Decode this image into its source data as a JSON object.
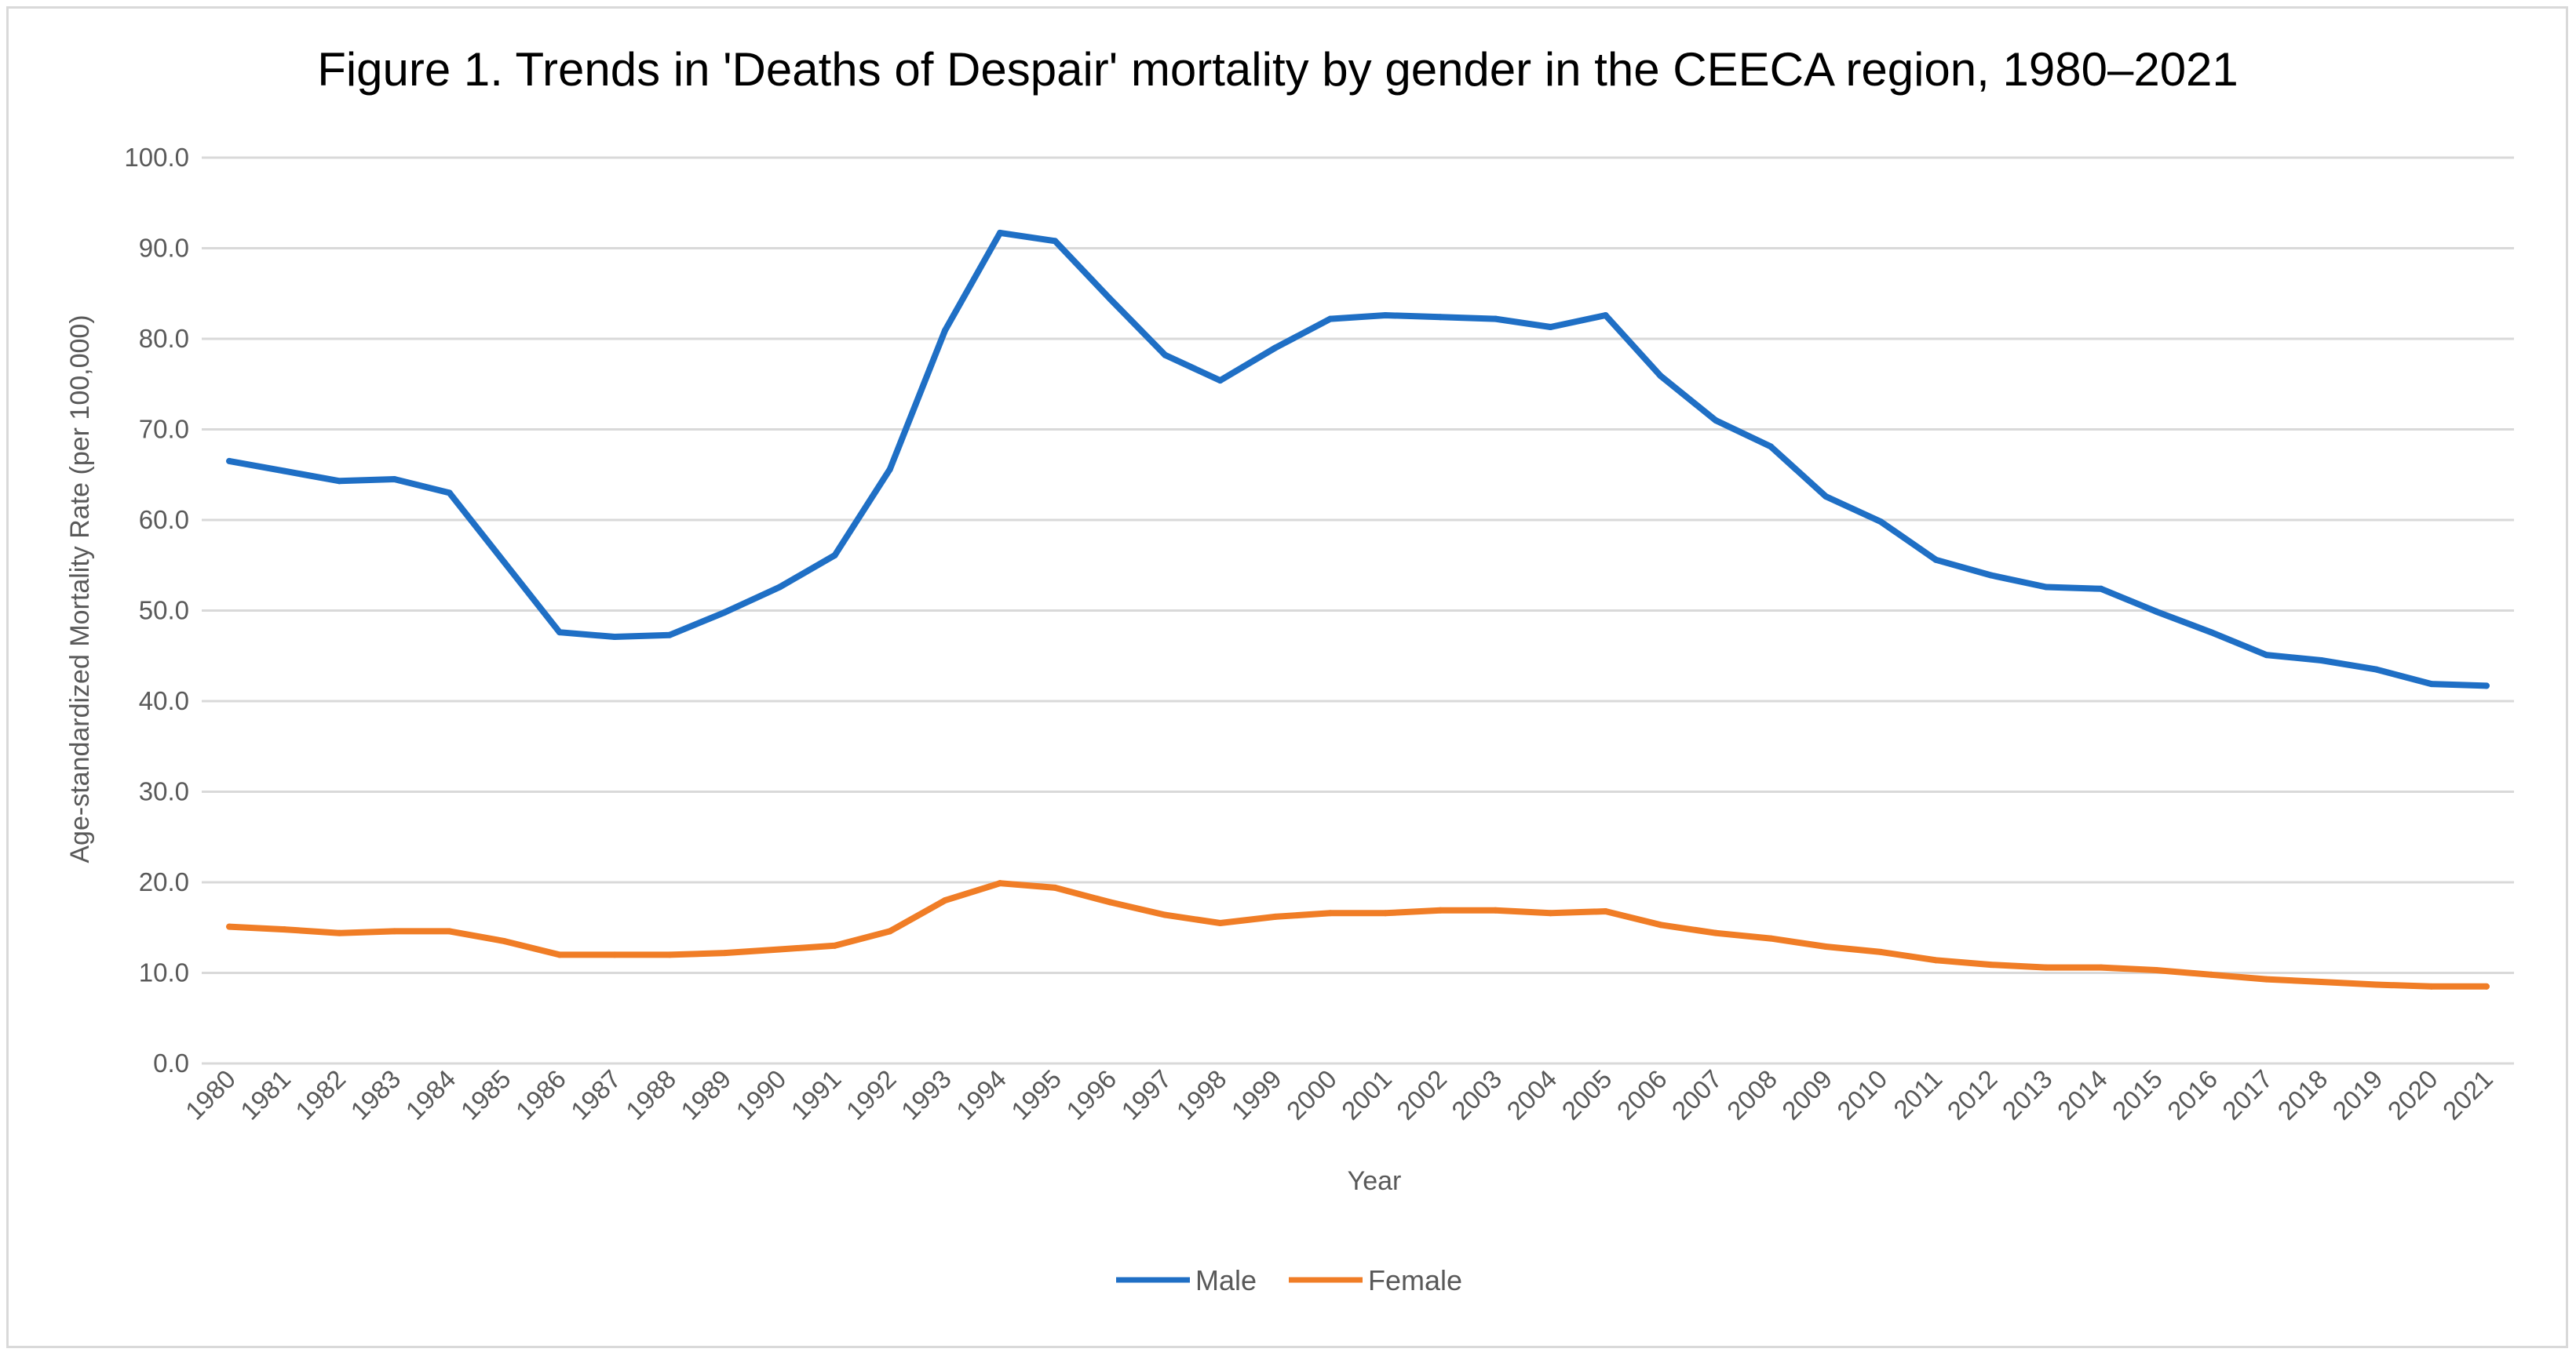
{
  "chart_data": {
    "type": "line",
    "title": "Figure 1. Trends in 'Deaths of Despair' mortality by gender in the CEECA region, 1980–2021",
    "xlabel": "Year",
    "ylabel": "Age-standardized Mortality Rate (per 100,000)",
    "ylim": [
      0,
      100
    ],
    "y_ticks": [
      "0.0",
      "10.0",
      "20.0",
      "30.0",
      "40.0",
      "50.0",
      "60.0",
      "70.0",
      "80.0",
      "90.0",
      "100.0"
    ],
    "grid": true,
    "legend_position": "bottom",
    "categories": [
      "1980",
      "1981",
      "1982",
      "1983",
      "1984",
      "1985",
      "1986",
      "1987",
      "1988",
      "1989",
      "1990",
      "1991",
      "1992",
      "1993",
      "1994",
      "1995",
      "1996",
      "1997",
      "1998",
      "1999",
      "2000",
      "2001",
      "2002",
      "2003",
      "2004",
      "2005",
      "2006",
      "2007",
      "2008",
      "2009",
      "2010",
      "2011",
      "2012",
      "2013",
      "2014",
      "2015",
      "2016",
      "2017",
      "2018",
      "2019",
      "2020",
      "2021"
    ],
    "series": [
      {
        "name": "Male",
        "color": "#1f6fc5",
        "values": [
          66.5,
          65.4,
          64.3,
          64.5,
          63.0,
          55.3,
          47.6,
          47.1,
          47.3,
          49.8,
          52.6,
          56.1,
          65.6,
          80.9,
          91.7,
          90.8,
          84.4,
          78.2,
          75.4,
          79.0,
          82.2,
          82.6,
          82.4,
          82.2,
          81.3,
          82.6,
          75.9,
          71.0,
          68.1,
          62.6,
          59.8,
          55.6,
          53.9,
          52.6,
          52.4,
          49.9,
          47.6,
          45.1,
          44.5,
          43.5,
          41.9,
          41.7
        ]
      },
      {
        "name": "Female",
        "color": "#f07d26",
        "values": [
          15.1,
          14.8,
          14.4,
          14.6,
          14.6,
          13.5,
          12.0,
          12.0,
          12.0,
          12.2,
          12.6,
          13.0,
          14.6,
          18.0,
          19.9,
          19.4,
          17.8,
          16.4,
          15.5,
          16.2,
          16.6,
          16.6,
          16.9,
          16.9,
          16.6,
          16.8,
          15.3,
          14.4,
          13.8,
          12.9,
          12.3,
          11.4,
          10.9,
          10.6,
          10.6,
          10.3,
          9.8,
          9.3,
          9.0,
          8.7,
          8.5,
          8.5
        ]
      }
    ]
  }
}
